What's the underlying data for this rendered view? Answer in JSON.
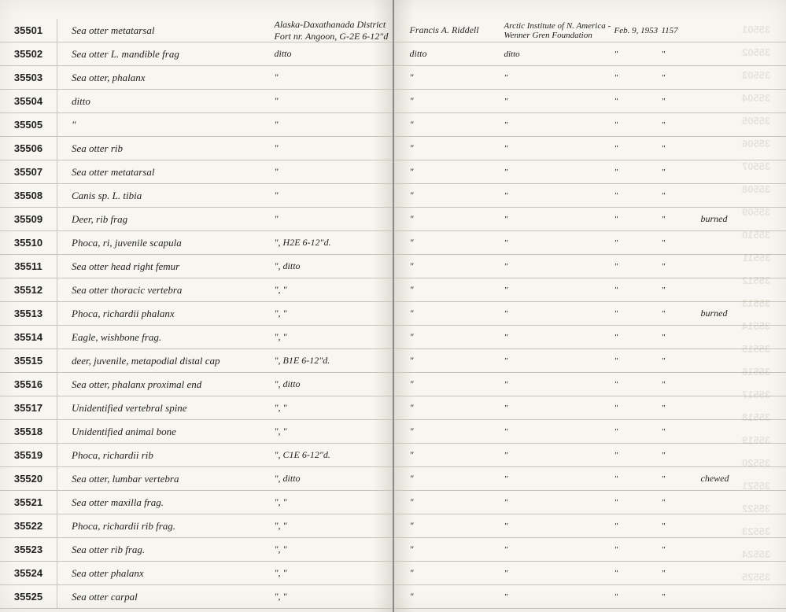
{
  "rows": [
    {
      "id": "35501",
      "desc": "Sea otter metatarsal",
      "loc": "Alaska-Daxathanada District Fort nr. Angoon, G-2E 6-12\"d",
      "collector": "Francis A. Riddell",
      "inst": "Arctic Institute of N. America - Wenner Gren Foundation",
      "date": "Feb. 9, 1953",
      "num": "1157",
      "notes": ""
    },
    {
      "id": "35502",
      "desc": "Sea otter L. mandible frag",
      "loc": "ditto",
      "collector": "ditto",
      "inst": "ditto",
      "date": "\"",
      "num": "\"",
      "notes": ""
    },
    {
      "id": "35503",
      "desc": "Sea otter, phalanx",
      "loc": "\"",
      "collector": "\"",
      "inst": "\"",
      "date": "\"",
      "num": "\"",
      "notes": ""
    },
    {
      "id": "35504",
      "desc": "ditto",
      "loc": "\"",
      "collector": "\"",
      "inst": "\"",
      "date": "\"",
      "num": "\"",
      "notes": ""
    },
    {
      "id": "35505",
      "desc": "\"",
      "loc": "\"",
      "collector": "\"",
      "inst": "\"",
      "date": "\"",
      "num": "\"",
      "notes": ""
    },
    {
      "id": "35506",
      "desc": "Sea otter rib",
      "loc": "\"",
      "collector": "\"",
      "inst": "\"",
      "date": "\"",
      "num": "\"",
      "notes": ""
    },
    {
      "id": "35507",
      "desc": "Sea otter metatarsal",
      "loc": "\"",
      "collector": "\"",
      "inst": "\"",
      "date": "\"",
      "num": "\"",
      "notes": ""
    },
    {
      "id": "35508",
      "desc": "Canis sp. L. tibia",
      "loc": "\"",
      "collector": "\"",
      "inst": "\"",
      "date": "\"",
      "num": "\"",
      "notes": ""
    },
    {
      "id": "35509",
      "desc": "Deer, rib frag",
      "loc": "\"",
      "collector": "\"",
      "inst": "\"",
      "date": "\"",
      "num": "\"",
      "notes": "burned"
    },
    {
      "id": "35510",
      "desc": "Phoca, ri, juvenile scapula",
      "loc": "\", H2E   6-12\"d.",
      "collector": "\"",
      "inst": "\"",
      "date": "\"",
      "num": "\"",
      "notes": ""
    },
    {
      "id": "35511",
      "desc": "Sea otter head right femur",
      "loc": "\", ditto",
      "collector": "\"",
      "inst": "\"",
      "date": "\"",
      "num": "\"",
      "notes": ""
    },
    {
      "id": "35512",
      "desc": "Sea otter thoracic vertebra",
      "loc": "\",  \"",
      "collector": "\"",
      "inst": "\"",
      "date": "\"",
      "num": "\"",
      "notes": ""
    },
    {
      "id": "35513",
      "desc": "Phoca, richardii phalanx",
      "loc": "\",  \"",
      "collector": "\"",
      "inst": "\"",
      "date": "\"",
      "num": "\"",
      "notes": "burned"
    },
    {
      "id": "35514",
      "desc": "Eagle, wishbone frag.",
      "loc": "\",  \"",
      "collector": "\"",
      "inst": "\"",
      "date": "\"",
      "num": "\"",
      "notes": ""
    },
    {
      "id": "35515",
      "desc": "deer, juvenile, metapodial distal cap",
      "loc": "\", B1E   6-12\"d.",
      "collector": "\"",
      "inst": "\"",
      "date": "\"",
      "num": "\"",
      "notes": ""
    },
    {
      "id": "35516",
      "desc": "Sea otter, phalanx proximal end",
      "loc": "\", ditto",
      "collector": "\"",
      "inst": "\"",
      "date": "\"",
      "num": "\"",
      "notes": ""
    },
    {
      "id": "35517",
      "desc": "Unidentified vertebral spine",
      "loc": "\",  \"",
      "collector": "\"",
      "inst": "\"",
      "date": "\"",
      "num": "\"",
      "notes": ""
    },
    {
      "id": "35518",
      "desc": "Unidentified animal bone",
      "loc": "\",  \"",
      "collector": "\"",
      "inst": "\"",
      "date": "\"",
      "num": "\"",
      "notes": ""
    },
    {
      "id": "35519",
      "desc": "Phoca, richardii rib",
      "loc": "\", C1E   6-12\"d.",
      "collector": "\"",
      "inst": "\"",
      "date": "\"",
      "num": "\"",
      "notes": ""
    },
    {
      "id": "35520",
      "desc": "Sea otter, lumbar vertebra",
      "loc": "\", ditto",
      "collector": "\"",
      "inst": "\"",
      "date": "\"",
      "num": "\"",
      "notes": "chewed"
    },
    {
      "id": "35521",
      "desc": "Sea otter maxilla frag.",
      "loc": "\",  \"",
      "collector": "\"",
      "inst": "\"",
      "date": "\"",
      "num": "\"",
      "notes": ""
    },
    {
      "id": "35522",
      "desc": "Phoca, richardii rib frag.",
      "loc": "\",  \"",
      "collector": "\"",
      "inst": "\"",
      "date": "\"",
      "num": "\"",
      "notes": ""
    },
    {
      "id": "35523",
      "desc": "Sea otter rib frag.",
      "loc": "\",  \"",
      "collector": "\"",
      "inst": "\"",
      "date": "\"",
      "num": "\"",
      "notes": ""
    },
    {
      "id": "35524",
      "desc": "Sea otter phalanx",
      "loc": "\",  \"",
      "collector": "\"",
      "inst": "\"",
      "date": "\"",
      "num": "\"",
      "notes": ""
    },
    {
      "id": "35525",
      "desc": "Sea otter carpal",
      "loc": "\",  \"",
      "collector": "\"",
      "inst": "\"",
      "date": "\"",
      "num": "\"",
      "notes": ""
    }
  ]
}
